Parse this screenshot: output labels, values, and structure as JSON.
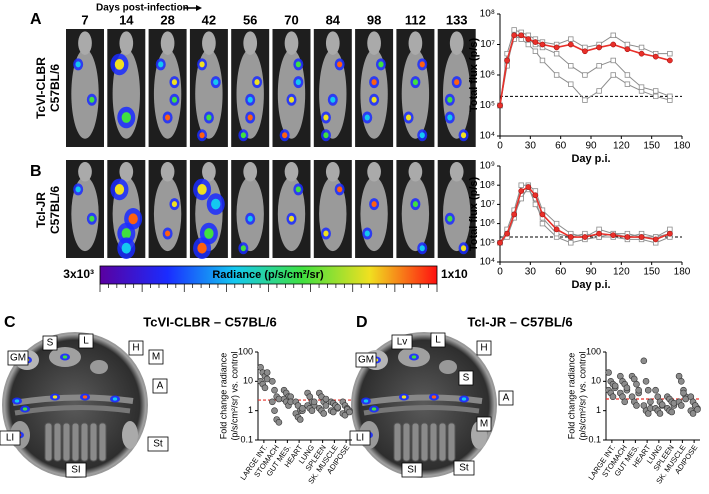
{
  "days_header": "Days post-infection",
  "days": [
    7,
    14,
    28,
    42,
    56,
    70,
    84,
    98,
    112,
    133
  ],
  "panel_a": {
    "label": "A",
    "row_label": [
      "TcVI-CLBR",
      "C57BL/6"
    ]
  },
  "panel_b": {
    "label": "B",
    "row_label": [
      "TcI-JR",
      "C57BL/6"
    ]
  },
  "colorbar": {
    "min_label": "3x10³",
    "max_label": "1x10",
    "label": "Radiance (p/s/cm²/sr)"
  },
  "panel_c": {
    "label": "C",
    "title": "TcVI-CLBR – C57BL/6",
    "organs": [
      "GM",
      "S",
      "L",
      "H",
      "M",
      "A",
      "LI",
      "St",
      "SI"
    ]
  },
  "panel_d": {
    "label": "D",
    "title": "TcI-JR – C57BL/6",
    "organs": [
      "GM",
      "Lv",
      "L",
      "H",
      "S",
      "A",
      "M",
      "LI",
      "SI",
      "St"
    ]
  },
  "chart_data": [
    {
      "type": "line",
      "ylabel": "Total flux (p/s)",
      "xlabel": "Day p.i.",
      "x": [
        0,
        7,
        14,
        21,
        28,
        35,
        42,
        56,
        70,
        84,
        98,
        112,
        126,
        140,
        154,
        168
      ],
      "series": [
        {
          "color": "#8c8c8c",
          "values": [
            100000,
            5000000,
            30000000,
            25000000,
            20000000,
            15000000,
            12000000,
            10000000,
            15000000,
            8000000,
            10000000,
            20000000,
            10000000,
            8000000,
            5000000,
            5000000
          ]
        },
        {
          "color": "#8c8c8c",
          "values": [
            100000,
            2000000,
            20000000,
            15000000,
            10000000,
            6000000,
            3000000,
            1000000,
            500000,
            150000,
            300000,
            1000000,
            500000,
            300000,
            200000,
            150000
          ]
        },
        {
          "color": "#8c8c8c",
          "values": [
            100000,
            3000000,
            15000000,
            20000000,
            15000000,
            10000000,
            8000000,
            5000000,
            2000000,
            1000000,
            2000000,
            3000000,
            1000000,
            400000,
            300000,
            200000
          ]
        },
        {
          "color": "#e8302a",
          "values": [
            100000,
            3000000,
            20000000,
            20000000,
            15000000,
            12000000,
            10000000,
            8000000,
            10000000,
            6000000,
            8000000,
            10000000,
            7000000,
            5000000,
            4000000,
            3000000
          ]
        }
      ],
      "xlim": [
        0,
        180
      ],
      "xticks": [
        0,
        30,
        60,
        90,
        120,
        150,
        180
      ],
      "ylim": [
        10000,
        100000000
      ],
      "yticks": [
        {
          "value": 10000,
          "label": "10⁴"
        },
        {
          "value": 100000,
          "label": "10⁵"
        },
        {
          "value": 1000000,
          "label": "10⁶"
        },
        {
          "value": 10000000,
          "label": "10⁷"
        },
        {
          "value": 100000000,
          "label": "10⁸"
        }
      ],
      "log_y": true,
      "reference_line": 200000
    },
    {
      "type": "line",
      "ylabel": "Total flux (p/s)",
      "xlabel": "Day p.i.",
      "x": [
        0,
        7,
        14,
        21,
        28,
        35,
        42,
        56,
        70,
        84,
        98,
        112,
        126,
        140,
        154,
        168
      ],
      "series": [
        {
          "color": "#8c8c8c",
          "values": [
            100000,
            500000,
            5000000,
            100000000,
            100000000,
            50000000,
            5000000,
            1000000,
            300000,
            200000,
            500000,
            300000,
            200000,
            300000,
            200000,
            500000
          ]
        },
        {
          "color": "#8c8c8c",
          "values": [
            100000,
            200000,
            2000000,
            30000000,
            60000000,
            20000000,
            1000000,
            200000,
            100000,
            150000,
            200000,
            200000,
            150000,
            150000,
            100000,
            200000
          ]
        },
        {
          "color": "#8c8c8c",
          "values": [
            100000,
            300000,
            3000000,
            20000000,
            80000000,
            10000000,
            2000000,
            300000,
            200000,
            300000,
            200000,
            300000,
            300000,
            200000,
            200000,
            300000
          ]
        },
        {
          "color": "#e8302a",
          "values": [
            100000,
            300000,
            3000000,
            50000000,
            80000000,
            30000000,
            3000000,
            500000,
            200000,
            200000,
            300000,
            250000,
            200000,
            200000,
            150000,
            300000
          ]
        }
      ],
      "xlim": [
        0,
        180
      ],
      "xticks": [
        0,
        30,
        60,
        90,
        120,
        150,
        180
      ],
      "ylim": [
        10000,
        1000000000
      ],
      "yticks": [
        {
          "value": 10000,
          "label": "10⁴"
        },
        {
          "value": 100000,
          "label": "10⁵"
        },
        {
          "value": 1000000,
          "label": "10⁶"
        },
        {
          "value": 10000000,
          "label": "10⁷"
        },
        {
          "value": 100000000,
          "label": "10⁸"
        },
        {
          "value": 1000000000,
          "label": "10⁹"
        }
      ],
      "log_y": true,
      "reference_line": 200000
    },
    {
      "type": "dot",
      "ylabel": [
        "Fold change radiance",
        "(p/s/cm²/sr) vs. control"
      ],
      "categories": [
        "LARGE INT.",
        "STOMACH",
        "GUT MES.",
        "HEART",
        "LUNG",
        "SPLEEN",
        "SK. MUSCLE",
        "ADIPOSE"
      ],
      "values": [
        [
          30,
          20,
          15,
          12,
          10,
          8,
          6,
          20
        ],
        [
          10,
          5,
          3,
          2.5,
          2,
          1,
          0.5,
          0.4
        ],
        [
          5,
          4,
          3,
          3,
          2.5,
          2,
          1.5,
          2
        ],
        [
          2,
          1.5,
          1,
          1,
          0.8,
          0.6,
          0.5,
          1.2
        ],
        [
          4,
          3,
          2,
          1.5,
          1.5,
          1.2,
          1,
          2
        ],
        [
          4,
          3,
          2,
          1.5,
          1.2,
          1,
          0.8,
          2.5
        ],
        [
          2,
          1.8,
          1.5,
          1.2,
          1,
          0.9,
          1.5,
          1.3
        ],
        [
          2,
          1.5,
          1.2,
          1,
          0.8,
          0.7,
          1.1,
          0.9
        ]
      ],
      "color": "#8c8c8c",
      "ylim": [
        0.1,
        100
      ],
      "yticks": [
        0.1,
        1,
        10,
        100
      ],
      "log_y": true,
      "reference_line": 2.3
    },
    {
      "type": "dot",
      "ylabel": [
        "Fold change radiance",
        "(p/s/cm²/sr) vs. control"
      ],
      "categories": [
        "LARGE INT.",
        "STOMACH",
        "GUT MES.",
        "HEART",
        "LUNG",
        "SPLEEN",
        "SK. MUSCLE",
        "ADIPOSE"
      ],
      "values": [
        [
          20,
          10,
          8,
          6,
          5,
          4,
          3,
          7
        ],
        [
          15,
          10,
          8,
          5,
          4,
          3,
          2,
          6
        ],
        [
          15,
          12,
          8,
          4,
          3,
          2,
          1.5,
          5
        ],
        [
          50,
          10,
          5,
          2,
          1.5,
          1,
          0.8,
          1.2
        ],
        [
          5,
          3,
          2,
          1.5,
          1.2,
          1,
          0.8,
          1.6
        ],
        [
          3,
          2.5,
          2,
          1.5,
          1.2,
          1,
          0.9,
          1.8
        ],
        [
          15,
          10,
          5,
          3,
          2,
          1.5,
          4,
          2.5
        ],
        [
          3,
          2,
          1.5,
          1.2,
          1,
          0.8,
          1.5,
          1.1
        ]
      ],
      "color": "#8c8c8c",
      "ylim": [
        0.1,
        100
      ],
      "yticks": [
        0.1,
        1,
        10,
        100
      ],
      "log_y": true,
      "reference_line": 2.5
    }
  ]
}
